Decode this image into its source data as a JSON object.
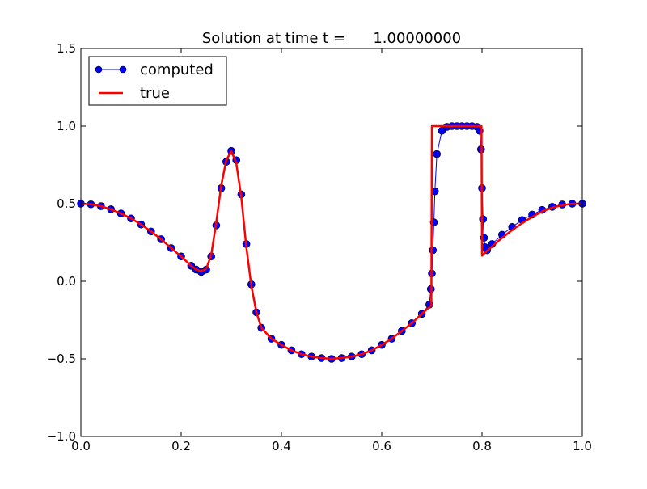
{
  "chart_data": {
    "type": "line",
    "title": "Solution at time t =      1.00000000",
    "xlim": [
      0.0,
      1.0
    ],
    "ylim": [
      -1.0,
      1.5
    ],
    "x_ticks": [
      0.0,
      0.2,
      0.4,
      0.6,
      0.8,
      1.0
    ],
    "x_tick_labels": [
      "0.0",
      "0.2",
      "0.4",
      "0.6",
      "0.8",
      "1.0"
    ],
    "y_ticks": [
      -1.0,
      -0.5,
      0.0,
      0.5,
      1.0,
      1.5
    ],
    "y_tick_labels": [
      "−1.0",
      "−0.5",
      "0.0",
      "0.5",
      "1.0",
      "1.5"
    ],
    "grid": false,
    "legend_position": "top-left",
    "series": [
      {
        "name": "computed",
        "style": "line-with-circle-markers",
        "line_color": "#0000ff",
        "marker_color": "#0000ff",
        "marker_edge": "#000000",
        "x": [
          0.0,
          0.02,
          0.04,
          0.06,
          0.08,
          0.1,
          0.12,
          0.14,
          0.16,
          0.18,
          0.2,
          0.22,
          0.23,
          0.24,
          0.25,
          0.26,
          0.27,
          0.28,
          0.29,
          0.3,
          0.31,
          0.32,
          0.33,
          0.34,
          0.35,
          0.36,
          0.38,
          0.4,
          0.42,
          0.44,
          0.46,
          0.48,
          0.5,
          0.52,
          0.54,
          0.56,
          0.58,
          0.6,
          0.62,
          0.64,
          0.66,
          0.68,
          0.695,
          0.698,
          0.7,
          0.702,
          0.704,
          0.706,
          0.71,
          0.72,
          0.73,
          0.74,
          0.75,
          0.76,
          0.77,
          0.78,
          0.79,
          0.795,
          0.798,
          0.8,
          0.802,
          0.804,
          0.806,
          0.81,
          0.82,
          0.84,
          0.86,
          0.88,
          0.9,
          0.92,
          0.94,
          0.96,
          0.98,
          1.0
        ],
        "y": [
          0.5,
          0.496,
          0.484,
          0.464,
          0.437,
          0.405,
          0.366,
          0.321,
          0.271,
          0.214,
          0.16,
          0.1,
          0.075,
          0.06,
          0.075,
          0.16,
          0.36,
          0.6,
          0.77,
          0.84,
          0.78,
          0.56,
          0.24,
          -0.02,
          -0.2,
          -0.3,
          -0.37,
          -0.41,
          -0.445,
          -0.47,
          -0.485,
          -0.495,
          -0.5,
          -0.495,
          -0.485,
          -0.47,
          -0.445,
          -0.41,
          -0.37,
          -0.32,
          -0.27,
          -0.21,
          -0.15,
          -0.05,
          0.05,
          0.2,
          0.38,
          0.58,
          0.82,
          0.97,
          0.995,
          1.0,
          1.0,
          1.0,
          1.0,
          1.0,
          0.995,
          0.97,
          0.85,
          0.6,
          0.4,
          0.28,
          0.22,
          0.2,
          0.24,
          0.3,
          0.35,
          0.395,
          0.43,
          0.46,
          0.48,
          0.495,
          0.5,
          0.5
        ]
      },
      {
        "name": "true",
        "style": "line",
        "line_color": "#ff0000",
        "x": [
          0.0,
          0.02,
          0.04,
          0.06,
          0.08,
          0.1,
          0.12,
          0.14,
          0.16,
          0.18,
          0.2,
          0.22,
          0.23,
          0.24,
          0.25,
          0.26,
          0.27,
          0.28,
          0.29,
          0.3,
          0.31,
          0.32,
          0.33,
          0.34,
          0.35,
          0.36,
          0.38,
          0.4,
          0.42,
          0.44,
          0.46,
          0.48,
          0.5,
          0.52,
          0.54,
          0.56,
          0.58,
          0.6,
          0.62,
          0.64,
          0.66,
          0.68,
          0.699,
          0.7,
          0.72,
          0.74,
          0.76,
          0.78,
          0.799,
          0.8,
          0.82,
          0.84,
          0.86,
          0.88,
          0.9,
          0.92,
          0.94,
          0.96,
          0.98,
          1.0
        ],
        "y": [
          0.5,
          0.496,
          0.484,
          0.464,
          0.437,
          0.405,
          0.366,
          0.321,
          0.271,
          0.214,
          0.16,
          0.1,
          0.075,
          0.065,
          0.08,
          0.17,
          0.38,
          0.62,
          0.78,
          0.84,
          0.76,
          0.54,
          0.22,
          -0.03,
          -0.2,
          -0.3,
          -0.37,
          -0.41,
          -0.445,
          -0.47,
          -0.485,
          -0.495,
          -0.5,
          -0.495,
          -0.485,
          -0.47,
          -0.445,
          -0.41,
          -0.37,
          -0.32,
          -0.27,
          -0.21,
          -0.155,
          1.0,
          1.0,
          1.0,
          1.0,
          1.0,
          1.0,
          0.165,
          0.225,
          0.28,
          0.33,
          0.375,
          0.415,
          0.45,
          0.475,
          0.49,
          0.5,
          0.5
        ]
      }
    ]
  }
}
